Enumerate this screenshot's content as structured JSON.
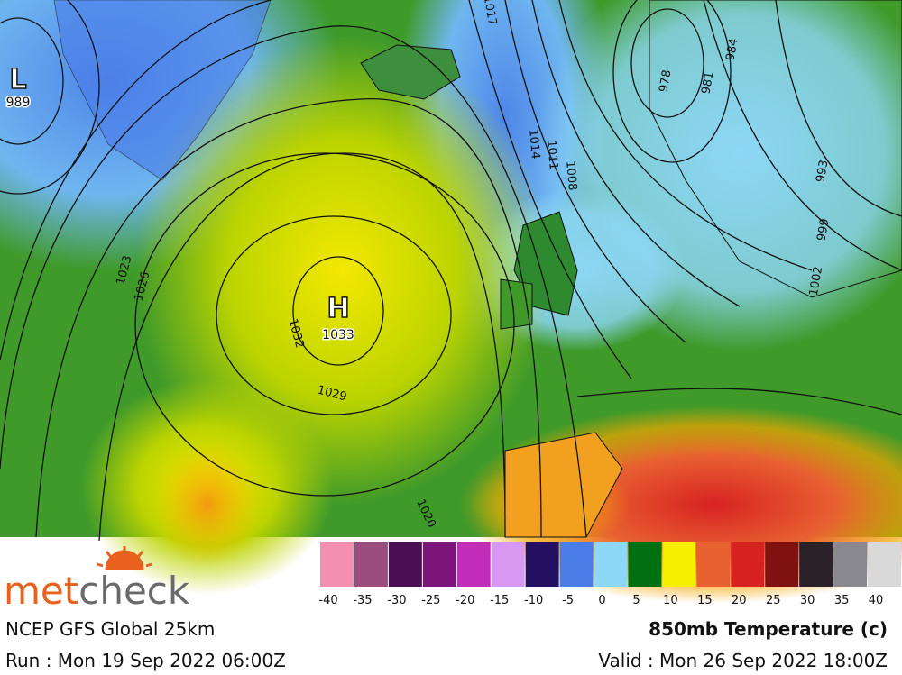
{
  "map": {
    "pressure_centers": [
      {
        "label": "H",
        "value": 1033
      },
      {
        "label": "L",
        "value": 989
      }
    ],
    "isobar_labels": [
      1017,
      1014,
      1011,
      1008,
      978,
      981,
      984,
      1023,
      1026,
      1032,
      1029,
      1020,
      993,
      999,
      1002
    ]
  },
  "legend": {
    "colors": [
      "#f48fb1",
      "#9a4d7e",
      "#4a0f52",
      "#7c1579",
      "#c22eb9",
      "#d897f0",
      "#241060",
      "#4b7de9",
      "#8dd7f7",
      "#007012",
      "#f7ef00",
      "#e86131",
      "#d82222",
      "#7f1111",
      "#2a2129",
      "#8a888f",
      "#d9d9d9"
    ],
    "ticks": [
      -40,
      -35,
      -30,
      -25,
      -20,
      -15,
      -10,
      -5,
      0,
      5,
      10,
      15,
      20,
      25,
      30,
      35,
      40
    ]
  },
  "logo": {
    "part1": "met",
    "part2": "check"
  },
  "model": "NCEP GFS Global 25km",
  "run": "Run : Mon 19 Sep 2022 06:00Z",
  "product": "850mb Temperature (c)",
  "valid": "Valid : Mon 26 Sep 2022 18:00Z"
}
